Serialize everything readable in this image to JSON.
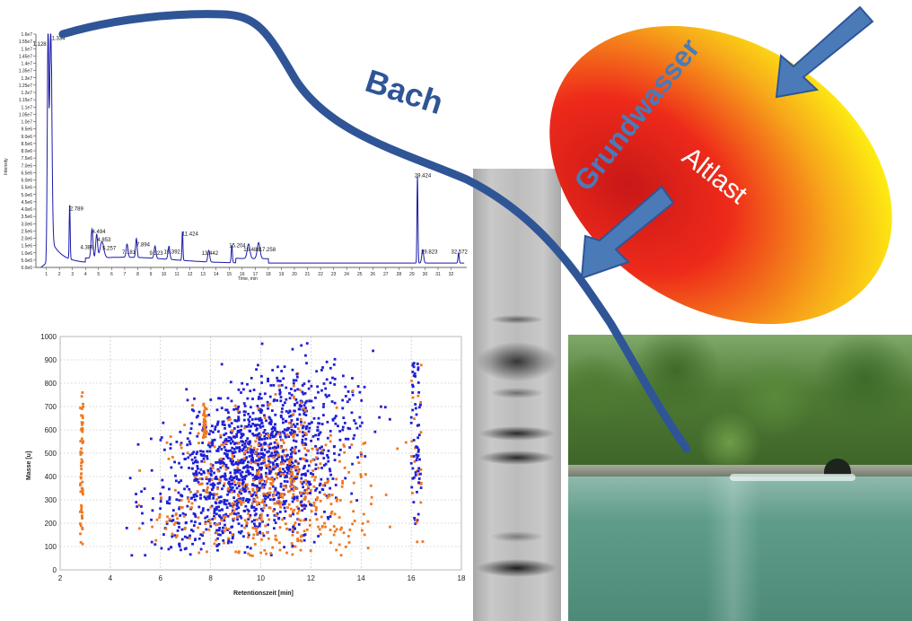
{
  "chromatogram": {
    "y_ticks": [
      "0.0e0",
      "5.0e5",
      "1.0e6",
      "1.5e6",
      "2.0e6",
      "2.5e6",
      "3.0e6",
      "3.5e6",
      "4.0e6",
      "4.5e6",
      "5.0e6",
      "5.5e6",
      "6.0e6",
      "6.5e6",
      "7.0e6",
      "7.5e6",
      "8.0e6",
      "8.5e6",
      "9.0e6",
      "9.5e6",
      "1.0e7",
      "1.05e7",
      "1.1e7",
      "1.15e7",
      "1.2e7",
      "1.25e7",
      "1.3e7",
      "1.35e7",
      "1.4e7",
      "1.45e7",
      "1.5e7",
      "1.55e7",
      "1.6e7"
    ],
    "y_axis_label": "Intensity",
    "x_axis_label": "Time, min",
    "x_ticks": [
      "1",
      "2",
      "3",
      "4",
      "5",
      "6",
      "7",
      "8",
      "9",
      "10",
      "11",
      "12",
      "13",
      "14",
      "15",
      "16",
      "17",
      "18",
      "19",
      "20",
      "21",
      "22",
      "23",
      "24",
      "25",
      "26",
      "27",
      "28",
      "29",
      "30",
      "31",
      "32"
    ],
    "peak_labels": [
      "1.128",
      "1.334",
      "2.789",
      "4.494",
      "4.389",
      "4.853",
      "5.257",
      "7.181",
      "7.894",
      "9.323",
      "10.392",
      "11.424",
      "13.442",
      "15.204",
      "16.488",
      "17.258",
      "29.424",
      "29.823",
      "32.572"
    ],
    "line_color": "#1a1aa8"
  },
  "scatter": {
    "x_axis_label": "Retentionszeit [min]",
    "y_axis_label": "Masse [u]",
    "x_ticks": [
      "2",
      "4",
      "6",
      "8",
      "10",
      "12",
      "14",
      "16",
      "18"
    ],
    "y_ticks": [
      "0",
      "100",
      "200",
      "300",
      "400",
      "500",
      "600",
      "700",
      "800",
      "900",
      "1000"
    ],
    "colors": {
      "series_a": "#1f1fd6",
      "series_b": "#f07820"
    }
  },
  "diagram": {
    "bach_label": "Bach",
    "grundwasser_label": "Grundwasser",
    "altlast_label": "Altlast",
    "colors": {
      "stream": "#2f5597",
      "arrow": "#4a7bb8",
      "ellipse_inner": "#e8201e",
      "ellipse_outer": "#ffff00"
    }
  },
  "icons": {
    "gel": "gel-electrophoresis-image",
    "photo": "river-bank-photo"
  }
}
